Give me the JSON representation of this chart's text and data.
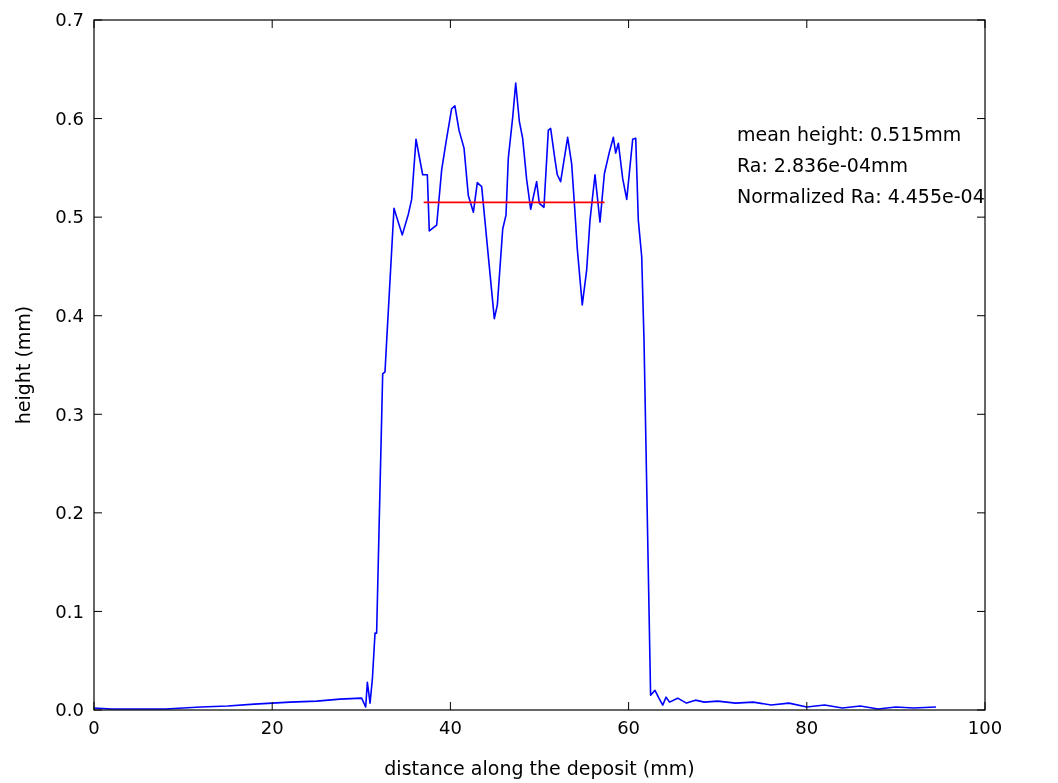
{
  "chart_data": {
    "type": "line",
    "xlabel": "distance along the deposit (mm)",
    "ylabel": "height (mm)",
    "xlim": [
      0,
      100
    ],
    "xticks": [
      0,
      20,
      40,
      60,
      80,
      100
    ],
    "ylim": [
      0,
      0.7
    ],
    "yticks": [
      {
        "value": 0,
        "label": "0.0"
      },
      0.1,
      0.2,
      0.3,
      0.4,
      0.5,
      0.6,
      0.7
    ],
    "grid": false,
    "marker": "none",
    "line_style": "solid",
    "annotations": [
      "mean height: 0.515mm",
      "Ra: 2.836e-04mm",
      "Normalized Ra: 4.455e-04"
    ],
    "series": [
      {
        "color": "#0000ff",
        "x": [
          0,
          2,
          5,
          8,
          10,
          12,
          15,
          18,
          20,
          22,
          25,
          27.6,
          30.04,
          30.49,
          30.68,
          30.98,
          31.24,
          31.54,
          31.72,
          32.4,
          32.66,
          32.85,
          33.67,
          33.97,
          34.6,
          35.28,
          35.65,
          36.14,
          36.89,
          37.41,
          37.63,
          38.46,
          39.02,
          39.51,
          40.14,
          40.5,
          40.97,
          41.53,
          42.01,
          42.58,
          43.02,
          43.51,
          43.69,
          44.25,
          44.93,
          45.27,
          45.87,
          46.24,
          46.5,
          47.0,
          47.33,
          47.74,
          48.11,
          48.56,
          49.01,
          49.68,
          49.98,
          50.5,
          50.99,
          51.25,
          51.74,
          52.0,
          52.37,
          53.16,
          53.61,
          53.98,
          54.24,
          54.8,
          55.29,
          55.67,
          56.23,
          56.79,
          57.28,
          57.84,
          58.29,
          58.55,
          58.85,
          59.34,
          59.79,
          60.46,
          60.8,
          61.09,
          61.47,
          61.73,
          62.47,
          62.96,
          63.4,
          63.83,
          64.2,
          64.6,
          65.5,
          66.5,
          67.5,
          68.5,
          70,
          72,
          74,
          76,
          78,
          80,
          82,
          84,
          86,
          88,
          90,
          92,
          94.5
        ],
        "values": [
          0.002,
          0.001,
          0.001,
          0.001,
          0.002,
          0.003,
          0.004,
          0.006,
          0.007,
          0.008,
          0.009,
          0.011,
          0.012,
          0.003,
          0.028,
          0.007,
          0.031,
          0.078,
          0.078,
          0.341,
          0.343,
          0.375,
          0.509,
          0.5,
          0.482,
          0.503,
          0.518,
          0.579,
          0.543,
          0.543,
          0.486,
          0.492,
          0.548,
          0.576,
          0.61,
          0.613,
          0.588,
          0.57,
          0.522,
          0.505,
          0.535,
          0.531,
          0.514,
          0.461,
          0.397,
          0.411,
          0.488,
          0.502,
          0.56,
          0.602,
          0.636,
          0.597,
          0.58,
          0.538,
          0.508,
          0.536,
          0.514,
          0.51,
          0.588,
          0.59,
          0.558,
          0.543,
          0.536,
          0.581,
          0.554,
          0.505,
          0.468,
          0.411,
          0.446,
          0.497,
          0.543,
          0.495,
          0.544,
          0.566,
          0.581,
          0.565,
          0.575,
          0.539,
          0.518,
          0.579,
          0.58,
          0.497,
          0.46,
          0.375,
          0.015,
          0.02,
          0.012,
          0.005,
          0.013,
          0.008,
          0.012,
          0.007,
          0.01,
          0.008,
          0.009,
          0.007,
          0.008,
          0.005,
          0.007,
          0.003,
          0.005,
          0.002,
          0.004,
          0.001,
          0.003,
          0.002,
          0.003
        ]
      },
      {
        "color": "#ff0000",
        "x": [
          37.0,
          57.3
        ],
        "values": [
          0.515,
          0.515
        ]
      }
    ]
  }
}
